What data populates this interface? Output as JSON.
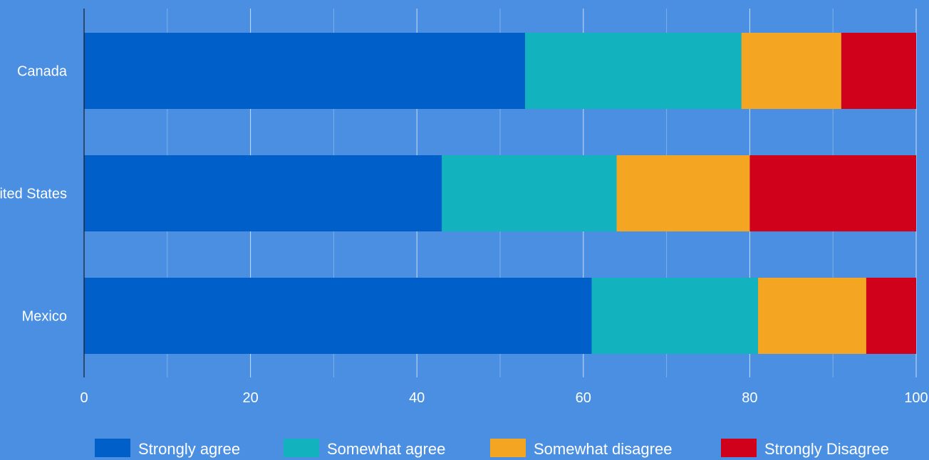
{
  "chart_data": {
    "type": "bar",
    "orientation": "horizontal",
    "stacked": true,
    "categories": [
      "Canada",
      "United States",
      "Mexico"
    ],
    "series": [
      {
        "name": "Strongly agree",
        "values": [
          53,
          43,
          61
        ],
        "color": "#005fc9"
      },
      {
        "name": "Somewhat agree",
        "values": [
          26,
          21,
          20
        ],
        "color": "#12b2bf"
      },
      {
        "name": "Somewhat disagree",
        "values": [
          12,
          16,
          13
        ],
        "color": "#f4a623"
      },
      {
        "name": "Strongly Disagree",
        "values": [
          9,
          20,
          6
        ],
        "color": "#d0021b"
      }
    ],
    "xlim": [
      0,
      100
    ],
    "xticks": [
      0,
      20,
      40,
      60,
      80,
      100
    ],
    "grid": true,
    "legend_position": "bottom",
    "background_color": "#4a8fe2",
    "gridline_color": "#ffffff",
    "title": "",
    "xlabel": "",
    "ylabel": ""
  }
}
